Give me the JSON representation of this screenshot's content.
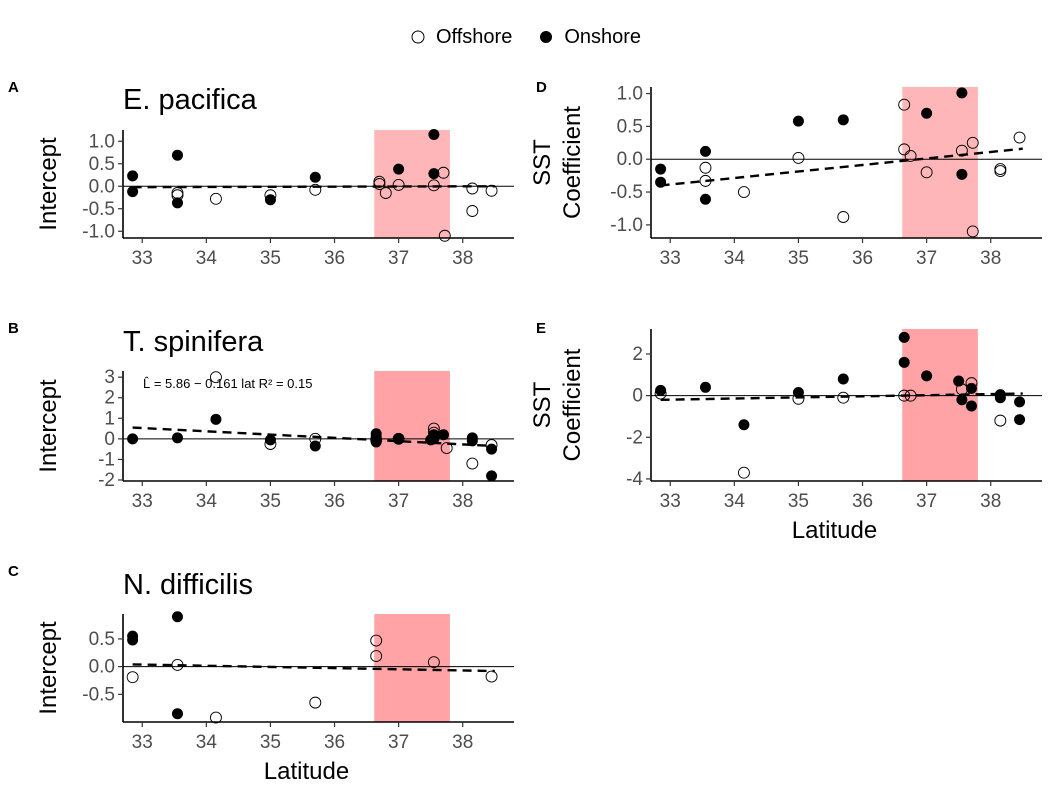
{
  "legend": {
    "position": "top",
    "items": [
      {
        "label": "Offshore",
        "marker": "open-circle"
      },
      {
        "label": "Onshore",
        "marker": "filled-circle"
      }
    ]
  },
  "colors": {
    "highlight_light": "#ffb6b9",
    "highlight_dark": "#ffa3a6",
    "point_filled": "#000000",
    "point_open_stroke": "#000000",
    "axis": "#000000"
  },
  "chart_data": [
    {
      "id": "A",
      "letter": "A",
      "type": "scatter",
      "title": "E. pacifica",
      "ylabel_lines": [
        "Intercept"
      ],
      "xlabel": "",
      "xlim": [
        32.7,
        38.8
      ],
      "ylim": [
        -1.15,
        1.25
      ],
      "x_ticks": [
        33,
        34,
        35,
        36,
        37,
        38
      ],
      "y_ticks": [
        -1.0,
        -0.5,
        0.0,
        0.5,
        1.0
      ],
      "y_tick_labels": [
        "-1.0",
        "-0.5",
        "0.0",
        "0.5",
        "1.0"
      ],
      "highlight_x": [
        36.62,
        37.8
      ],
      "highlight_shade": "light",
      "hline": 0,
      "fit": {
        "x": [
          32.85,
          38.5
        ],
        "y": [
          -0.02,
          0.0
        ]
      },
      "annotation": "",
      "offshore": [
        [
          33.55,
          -0.15
        ],
        [
          33.55,
          -0.2
        ],
        [
          34.15,
          -0.28
        ],
        [
          35.0,
          -0.2
        ],
        [
          35.7,
          -0.08
        ],
        [
          36.7,
          0.05
        ],
        [
          36.7,
          0.1
        ],
        [
          36.8,
          -0.15
        ],
        [
          37.0,
          0.03
        ],
        [
          37.55,
          0.02
        ],
        [
          37.7,
          0.3
        ],
        [
          37.72,
          -1.1
        ],
        [
          38.15,
          -0.05
        ],
        [
          38.15,
          -0.55
        ],
        [
          38.45,
          -0.1
        ]
      ],
      "onshore": [
        [
          32.85,
          0.23
        ],
        [
          32.85,
          -0.12
        ],
        [
          33.55,
          0.69
        ],
        [
          33.55,
          -0.37
        ],
        [
          35.0,
          -0.3
        ],
        [
          35.7,
          0.2
        ],
        [
          37.0,
          0.38
        ],
        [
          37.55,
          1.15
        ],
        [
          37.55,
          0.28
        ]
      ]
    },
    {
      "id": "B",
      "letter": "B",
      "type": "scatter",
      "title": "T. spinifera",
      "ylabel_lines": [
        "Intercept"
      ],
      "xlabel": "",
      "xlim": [
        32.7,
        38.8
      ],
      "ylim": [
        -2.05,
        3.3
      ],
      "x_ticks": [
        33,
        34,
        35,
        36,
        37,
        38
      ],
      "y_ticks": [
        -2,
        -1,
        0,
        1,
        2,
        3
      ],
      "y_tick_labels": [
        "-2",
        "-1",
        "0",
        "1",
        "2",
        "3"
      ],
      "highlight_x": [
        36.62,
        37.8
      ],
      "highlight_shade": "dark",
      "hline": 0,
      "fit": {
        "x": [
          32.85,
          38.5
        ],
        "y": [
          0.55,
          -0.35
        ]
      },
      "annotation": "L̂ = 5.86 − 0.161 lat   R² = 0.15",
      "offshore": [
        [
          34.15,
          3.0
        ],
        [
          35.0,
          -0.25
        ],
        [
          35.7,
          0.0
        ],
        [
          36.65,
          -0.05
        ],
        [
          37.0,
          0.0
        ],
        [
          37.55,
          0.5
        ],
        [
          37.55,
          0.3
        ],
        [
          37.55,
          0.1
        ],
        [
          37.75,
          -0.45
        ],
        [
          38.15,
          -1.2
        ],
        [
          38.45,
          -0.3
        ]
      ],
      "onshore": [
        [
          32.85,
          0.0
        ],
        [
          33.55,
          0.05
        ],
        [
          34.15,
          0.95
        ],
        [
          35.0,
          -0.05
        ],
        [
          35.7,
          -0.35
        ],
        [
          36.65,
          0.25
        ],
        [
          36.65,
          0.1
        ],
        [
          36.65,
          -0.15
        ],
        [
          37.0,
          0.0
        ],
        [
          37.5,
          -0.05
        ],
        [
          37.55,
          0.2
        ],
        [
          37.55,
          0.0
        ],
        [
          37.7,
          0.2
        ],
        [
          38.15,
          0.05
        ],
        [
          38.15,
          -0.1
        ],
        [
          38.45,
          -0.5
        ],
        [
          38.45,
          -1.8
        ]
      ]
    },
    {
      "id": "C",
      "letter": "C",
      "type": "scatter",
      "title": "N. difficilis",
      "ylabel_lines": [
        "Intercept"
      ],
      "xlabel": "Latitude",
      "xlim": [
        32.7,
        38.8
      ],
      "ylim": [
        -1.0,
        0.95
      ],
      "x_ticks": [
        33,
        34,
        35,
        36,
        37,
        38
      ],
      "y_ticks": [
        -0.5,
        0.0,
        0.5
      ],
      "y_tick_labels": [
        "-0.5",
        "0.0",
        "0.5"
      ],
      "highlight_x": [
        36.62,
        37.8
      ],
      "highlight_shade": "dark",
      "hline": 0,
      "fit": {
        "x": [
          32.85,
          38.5
        ],
        "y": [
          0.04,
          -0.08
        ]
      },
      "annotation": "",
      "offshore": [
        [
          32.85,
          -0.19
        ],
        [
          33.55,
          0.03
        ],
        [
          34.15,
          -0.92
        ],
        [
          35.7,
          -0.65
        ],
        [
          36.65,
          0.47
        ],
        [
          36.65,
          0.19
        ],
        [
          37.55,
          0.08
        ],
        [
          38.45,
          -0.18
        ]
      ],
      "onshore": [
        [
          32.85,
          0.55
        ],
        [
          32.85,
          0.48
        ],
        [
          33.55,
          0.9
        ],
        [
          33.55,
          -0.85
        ]
      ]
    },
    {
      "id": "D",
      "letter": "D",
      "type": "scatter",
      "title": "",
      "ylabel_lines": [
        "SST",
        "Coefficient"
      ],
      "xlabel": "",
      "xlim": [
        32.7,
        38.8
      ],
      "ylim": [
        -1.2,
        1.1
      ],
      "x_ticks": [
        33,
        34,
        35,
        36,
        37,
        38
      ],
      "y_ticks": [
        -1.0,
        -0.5,
        0.0,
        0.5,
        1.0
      ],
      "y_tick_labels": [
        "-1.0",
        "-0.5",
        "0.0",
        "0.5",
        "1.0"
      ],
      "highlight_x": [
        36.62,
        37.8
      ],
      "highlight_shade": "light",
      "hline": 0,
      "fit": {
        "x": [
          32.85,
          38.5
        ],
        "y": [
          -0.4,
          0.16
        ]
      },
      "annotation": "",
      "offshore": [
        [
          33.55,
          -0.13
        ],
        [
          33.55,
          -0.33
        ],
        [
          34.15,
          -0.5
        ],
        [
          35.0,
          0.02
        ],
        [
          35.7,
          -0.88
        ],
        [
          36.65,
          0.83
        ],
        [
          36.65,
          0.15
        ],
        [
          36.75,
          0.05
        ],
        [
          37.0,
          -0.2
        ],
        [
          37.55,
          0.13
        ],
        [
          37.72,
          0.25
        ],
        [
          37.72,
          -1.1
        ],
        [
          38.15,
          -0.15
        ],
        [
          38.15,
          -0.18
        ],
        [
          38.45,
          0.33
        ]
      ],
      "onshore": [
        [
          32.85,
          -0.15
        ],
        [
          32.85,
          -0.35
        ],
        [
          33.55,
          0.12
        ],
        [
          33.55,
          -0.61
        ],
        [
          35.0,
          0.58
        ],
        [
          35.7,
          0.6
        ],
        [
          37.0,
          0.7
        ],
        [
          37.55,
          1.01
        ],
        [
          37.55,
          -0.23
        ]
      ]
    },
    {
      "id": "E",
      "letter": "E",
      "type": "scatter",
      "title": "",
      "ylabel_lines": [
        "SST",
        "Coefficient"
      ],
      "xlabel": "Latitude",
      "xlim": [
        32.7,
        38.8
      ],
      "ylim": [
        -4.1,
        3.2
      ],
      "x_ticks": [
        33,
        34,
        35,
        36,
        37,
        38
      ],
      "y_ticks": [
        -4,
        -2,
        0,
        2
      ],
      "y_tick_labels": [
        "-4",
        "-2",
        "0",
        "2"
      ],
      "highlight_x": [
        36.62,
        37.8
      ],
      "highlight_shade": "dark",
      "hline": 0,
      "fit": {
        "x": [
          32.85,
          38.5
        ],
        "y": [
          -0.2,
          0.1
        ]
      },
      "annotation": "",
      "offshore": [
        [
          32.85,
          0.1
        ],
        [
          34.15,
          -3.7
        ],
        [
          35.0,
          -0.15
        ],
        [
          35.7,
          -0.1
        ],
        [
          36.65,
          0.0
        ],
        [
          36.75,
          0.0
        ],
        [
          37.55,
          0.3
        ],
        [
          37.7,
          0.6
        ],
        [
          38.15,
          -1.2
        ]
      ],
      "onshore": [
        [
          32.85,
          0.25
        ],
        [
          33.55,
          0.4
        ],
        [
          34.15,
          -1.4
        ],
        [
          35.0,
          0.15
        ],
        [
          35.7,
          0.8
        ],
        [
          36.65,
          2.8
        ],
        [
          36.65,
          1.6
        ],
        [
          37.0,
          0.95
        ],
        [
          37.5,
          0.7
        ],
        [
          37.55,
          -0.2
        ],
        [
          37.7,
          0.35
        ],
        [
          37.7,
          -0.5
        ],
        [
          38.15,
          0.05
        ],
        [
          38.15,
          -0.1
        ],
        [
          38.45,
          -0.3
        ],
        [
          38.45,
          -1.15
        ]
      ]
    }
  ]
}
